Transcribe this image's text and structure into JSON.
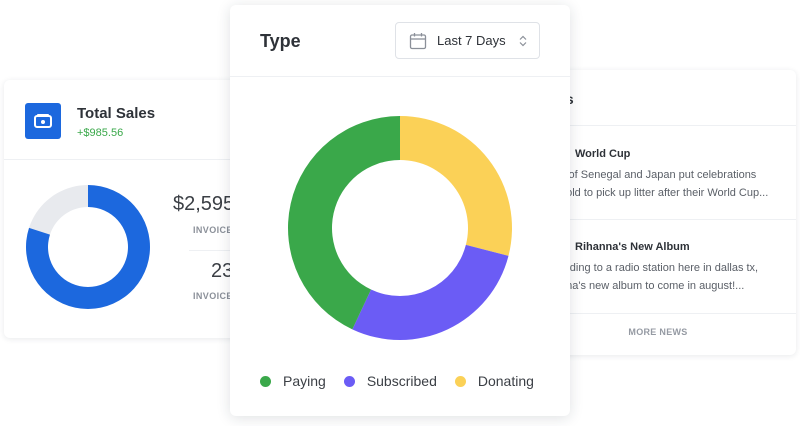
{
  "colors": {
    "paying": "#3aa84a",
    "subscribed": "#6b5cf5",
    "donating": "#fbd157",
    "sales_blue": "#1c68de",
    "sales_track": "#e8eaee"
  },
  "sales": {
    "title": "Total Sales",
    "delta": "+$985.56",
    "stat_1_value": "$2,595",
    "stat_1_label": "INVOICED",
    "stat_2_value": "23",
    "stat_2_label": "INVOICES",
    "ring_fraction": 0.8,
    "icon": "wallet-icon"
  },
  "news": {
    "title": "ws",
    "items": [
      {
        "headline": "World Cup",
        "lines": [
          "s of Senegal and Japan put celebrations",
          "hold to pick up litter after their World Cup..."
        ]
      },
      {
        "headline": "Rihanna's New Album",
        "lines": [
          "ording to a radio station here in dallas tx,",
          "nna's new album to come in august!..."
        ]
      }
    ],
    "more_label": "MORE NEWS"
  },
  "type_card": {
    "title": "Type",
    "range_label": "Last 7 Days",
    "calendar_icon": "calendar-icon",
    "sort_icon": "sort-icon"
  },
  "chart_data": {
    "type": "pie",
    "donut": true,
    "title": "Type",
    "categories": [
      "Paying",
      "Subscribed",
      "Donating"
    ],
    "values": [
      43,
      28,
      29
    ],
    "legend_position": "bottom"
  }
}
